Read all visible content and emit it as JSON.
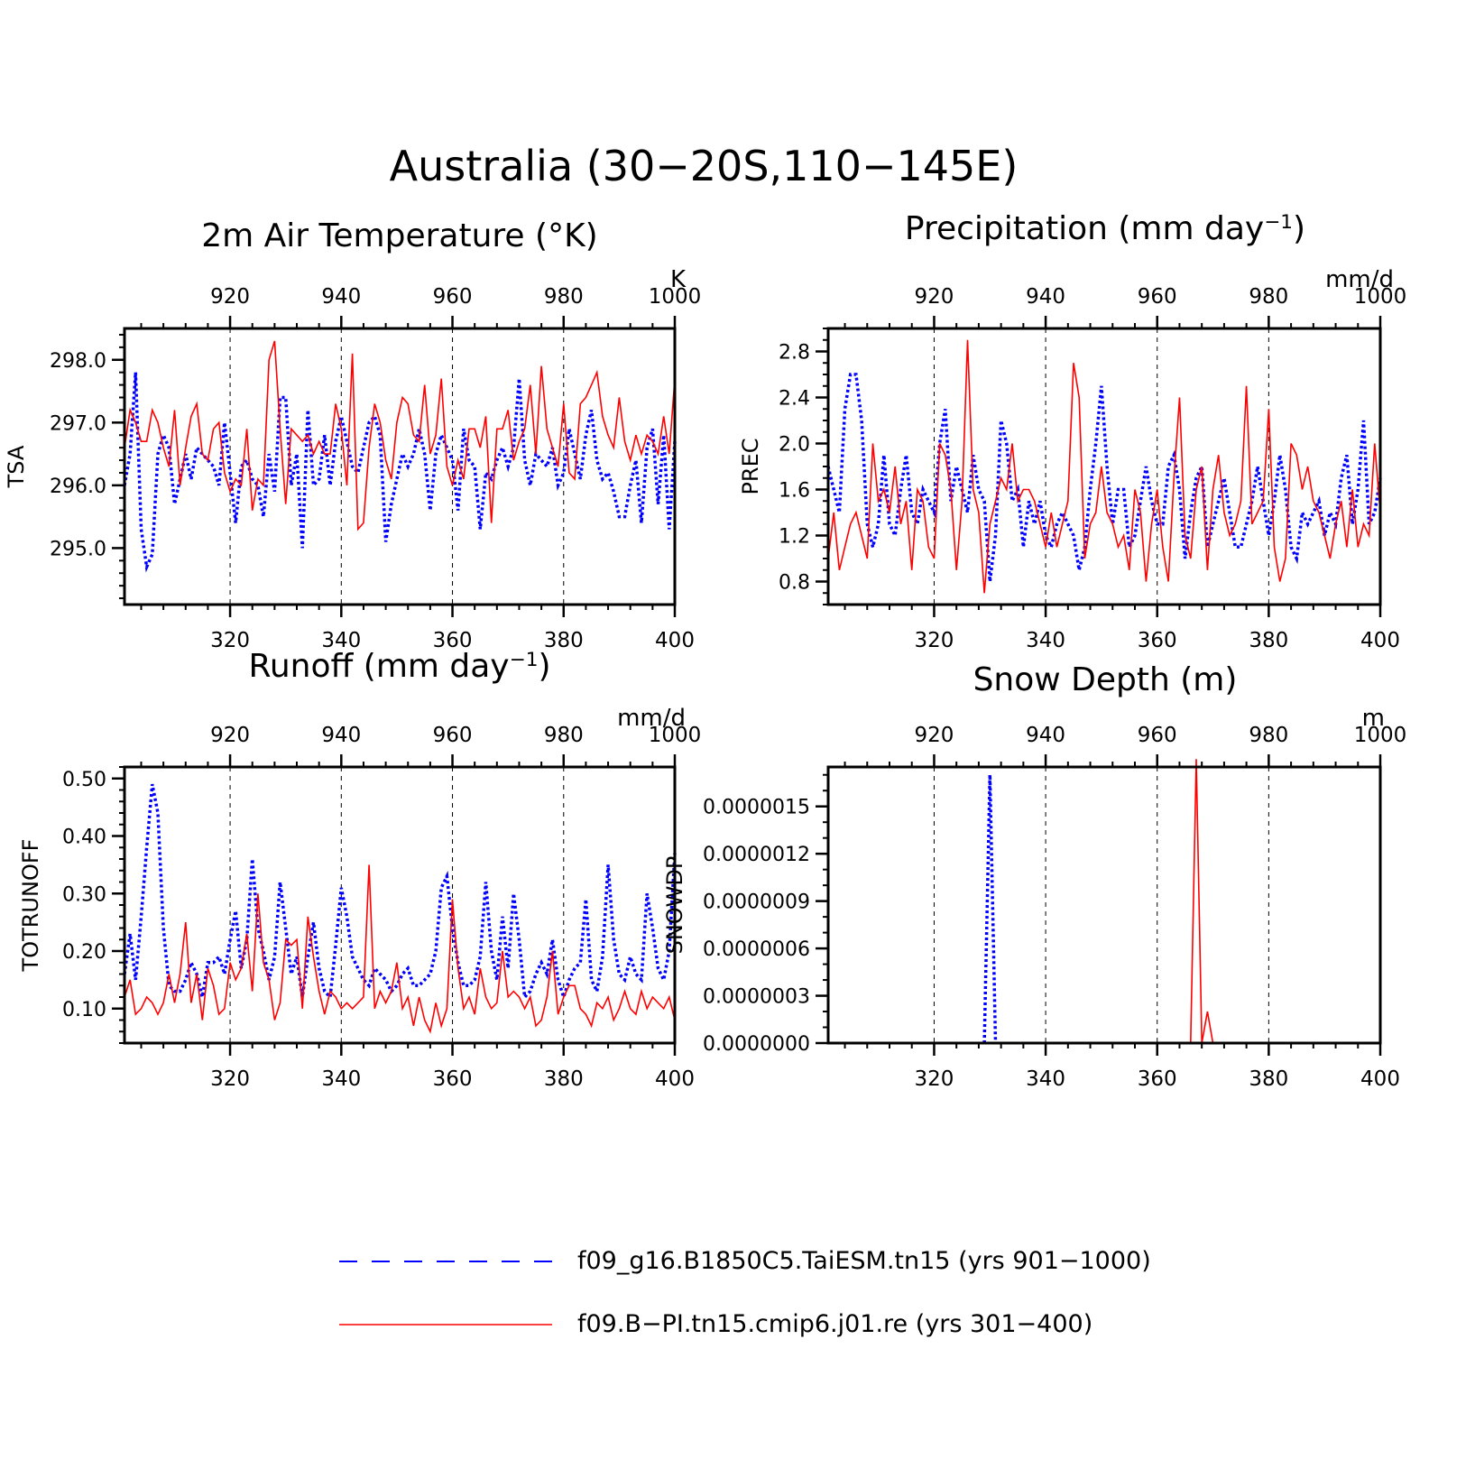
{
  "main_title": "Australia (30−20S,110−145E)",
  "colors": {
    "blue": "#0000ff",
    "red": "#ff0000",
    "axis": "#000000",
    "grid": "#000000"
  },
  "legend": {
    "items": [
      {
        "label": "f09_g16.B1850C5.TaiESM.tn15 (yrs 901−1000)",
        "color": "#0000ff",
        "style": "dashed"
      },
      {
        "label": "f09.B−PI.tn15.cmip6.j01.re (yrs 301−400)",
        "color": "#ff0000",
        "style": "solid"
      }
    ]
  },
  "chart_data": [
    {
      "type": "line",
      "title": "2m Air Temperature (°K)",
      "ylabel": "TSA",
      "units": "K",
      "ylim": [
        294.1,
        298.5
      ],
      "yticks": [
        295.0,
        296.0,
        297.0,
        298.0
      ],
      "ytick_labels": [
        "295.0",
        "296.0",
        "297.0",
        "298.0"
      ],
      "ytick_minor_step": 0.2,
      "grid": "vertical dashed",
      "x_bottom": {
        "range": [
          301,
          400
        ],
        "ticks": [
          320,
          340,
          360,
          380,
          400
        ],
        "color": "#ff0000"
      },
      "x_top": {
        "range": [
          901,
          1000
        ],
        "ticks": [
          920,
          940,
          960,
          980,
          1000
        ],
        "color": "#0000ff"
      },
      "series": [
        {
          "name": "f09_g16.B1850C5.TaiESM.tn15 (yrs 901−1000)",
          "axis": "top",
          "color": "#0000ff",
          "style": "dotted",
          "x_start": 901,
          "values": [
            296.0,
            296.5,
            297.8,
            295.3,
            294.7,
            294.9,
            296.5,
            296.8,
            296.6,
            295.7,
            296.1,
            296.5,
            296.1,
            296.6,
            296.5,
            296.4,
            296.3,
            296.0,
            297.0,
            296.2,
            295.4,
            296.3,
            296.4,
            296.1,
            296.0,
            295.5,
            296.5,
            295.9,
            297.4,
            297.4,
            296.0,
            296.5,
            295.0,
            297.2,
            296.0,
            296.1,
            296.8,
            296.0,
            296.7,
            297.1,
            296.7,
            296.3,
            296.2,
            296.6,
            297.0,
            297.1,
            296.8,
            295.1,
            295.7,
            296.1,
            296.5,
            296.3,
            296.5,
            296.9,
            296.5,
            295.6,
            296.5,
            296.8,
            296.6,
            296.4,
            295.6,
            296.9,
            296.4,
            296.3,
            295.3,
            296.2,
            296.1,
            296.4,
            296.6,
            296.3,
            296.6,
            297.7,
            296.4,
            296.0,
            296.5,
            296.4,
            296.3,
            296.6,
            296.0,
            296.2,
            296.9,
            296.5,
            296.1,
            296.8,
            297.2,
            296.4,
            296.1,
            296.2,
            295.9,
            295.5,
            295.5,
            296.0,
            296.4,
            295.4,
            296.6,
            296.9,
            295.7,
            296.8,
            295.3,
            296.7
          ]
        },
        {
          "name": "f09.B−PI.tn15.cmip6.j01.re (yrs 301−400)",
          "axis": "bottom",
          "color": "#ff0000",
          "style": "solid",
          "x_start": 301,
          "values": [
            296.6,
            297.2,
            297.0,
            296.7,
            296.7,
            297.2,
            297.0,
            296.6,
            296.3,
            297.2,
            296.0,
            296.6,
            297.1,
            297.3,
            296.5,
            296.4,
            296.9,
            297.0,
            296.2,
            295.9,
            296.1,
            296.0,
            296.9,
            295.6,
            296.1,
            296.0,
            298.0,
            298.3,
            296.9,
            295.7,
            296.9,
            296.8,
            296.7,
            296.8,
            296.5,
            296.7,
            296.5,
            296.5,
            297.3,
            296.9,
            296.0,
            298.1,
            295.3,
            295.4,
            296.6,
            297.3,
            297.0,
            296.4,
            296.1,
            297.0,
            297.4,
            297.3,
            296.8,
            296.7,
            297.6,
            296.5,
            296.8,
            297.7,
            296.3,
            296.0,
            296.4,
            296.1,
            296.9,
            296.9,
            296.6,
            297.1,
            295.4,
            296.9,
            296.9,
            297.2,
            296.4,
            296.7,
            296.9,
            297.6,
            296.5,
            297.9,
            296.9,
            296.6,
            296.3,
            297.3,
            296.2,
            296.1,
            297.3,
            297.4,
            297.6,
            297.8,
            297.1,
            296.8,
            296.6,
            297.4,
            296.7,
            296.4,
            296.8,
            296.5,
            296.8,
            296.7,
            296.5,
            297.1,
            296.5,
            297.7
          ]
        }
      ]
    },
    {
      "type": "line",
      "title": "Precipitation (mm day⁻¹)",
      "ylabel": "PREC",
      "units": "mm/d",
      "ylim": [
        0.6,
        3.0
      ],
      "yticks": [
        0.8,
        1.2,
        1.6,
        2.0,
        2.4,
        2.8
      ],
      "ytick_labels": [
        "0.8",
        "1.2",
        "1.6",
        "2.0",
        "2.4",
        "2.8"
      ],
      "ytick_minor_step": 0.1,
      "grid": "vertical dashed",
      "x_bottom": {
        "range": [
          301,
          400
        ],
        "ticks": [
          320,
          340,
          360,
          380,
          400
        ],
        "color": "#ff0000"
      },
      "x_top": {
        "range": [
          901,
          1000
        ],
        "ticks": [
          920,
          940,
          960,
          980,
          1000
        ],
        "color": "#0000ff"
      },
      "series": [
        {
          "name": "f09_g16.B1850C5.TaiESM.tn15 (yrs 901−1000)",
          "axis": "top",
          "color": "#0000ff",
          "style": "dotted",
          "x_start": 901,
          "values": [
            1.8,
            1.6,
            1.4,
            2.3,
            2.6,
            2.6,
            2.2,
            1.3,
            1.1,
            1.3,
            1.9,
            1.3,
            1.2,
            1.6,
            1.9,
            1.4,
            1.3,
            1.6,
            1.5,
            1.4,
            2.0,
            2.3,
            1.5,
            1.8,
            1.6,
            1.4,
            1.9,
            1.6,
            1.5,
            0.8,
            1.2,
            2.2,
            2.0,
            1.5,
            1.6,
            1.1,
            1.5,
            1.3,
            1.5,
            1.2,
            1.1,
            1.3,
            1.4,
            1.3,
            1.2,
            0.9,
            1.1,
            1.6,
            2.0,
            2.5,
            1.8,
            1.3,
            1.6,
            1.6,
            1.1,
            1.2,
            1.5,
            1.8,
            1.5,
            1.3,
            1.3,
            1.8,
            1.9,
            1.6,
            1.0,
            1.4,
            1.7,
            1.8,
            1.1,
            1.3,
            1.5,
            1.7,
            1.4,
            1.1,
            1.1,
            1.3,
            1.5,
            1.8,
            1.5,
            1.2,
            1.5,
            1.9,
            1.6,
            1.1,
            1.0,
            1.4,
            1.3,
            1.4,
            1.5,
            1.2,
            1.4,
            1.3,
            1.7,
            1.9,
            1.3,
            1.6,
            2.2,
            1.3,
            1.4,
            1.7
          ]
        },
        {
          "name": "f09.B−PI.tn15.cmip6.j01.re (yrs 301−400)",
          "axis": "bottom",
          "color": "#ff0000",
          "style": "solid",
          "x_start": 301,
          "values": [
            1.0,
            1.4,
            0.9,
            1.1,
            1.3,
            1.4,
            1.2,
            1.0,
            2.0,
            1.5,
            1.6,
            1.4,
            1.8,
            1.3,
            1.5,
            0.9,
            1.6,
            1.5,
            1.1,
            1.0,
            2.0,
            1.9,
            1.6,
            0.9,
            1.5,
            2.9,
            1.6,
            1.4,
            0.7,
            1.3,
            1.5,
            1.7,
            1.6,
            2.0,
            1.5,
            1.6,
            1.6,
            1.5,
            1.3,
            1.1,
            1.4,
            1.1,
            1.3,
            1.5,
            2.7,
            2.4,
            1.0,
            1.3,
            1.4,
            1.8,
            1.4,
            1.3,
            1.1,
            1.2,
            0.9,
            1.6,
            1.4,
            0.8,
            1.3,
            1.6,
            1.1,
            0.8,
            1.7,
            2.4,
            1.2,
            1.0,
            1.6,
            1.8,
            0.9,
            1.6,
            1.9,
            1.4,
            1.2,
            1.3,
            1.5,
            2.5,
            1.3,
            1.4,
            1.5,
            2.3,
            1.1,
            0.8,
            1.0,
            2.0,
            1.9,
            1.6,
            1.8,
            1.5,
            1.4,
            1.2,
            1.0,
            1.3,
            1.5,
            1.1,
            1.6,
            1.1,
            1.3,
            1.2,
            2.0,
            1.4
          ]
        }
      ]
    },
    {
      "type": "line",
      "title": "Runoff (mm day⁻¹)",
      "ylabel": "TOTRUNOFF",
      "units": "mm/d",
      "ylim": [
        0.04,
        0.52
      ],
      "yticks": [
        0.1,
        0.2,
        0.3,
        0.4,
        0.5
      ],
      "ytick_labels": [
        "0.10",
        "0.20",
        "0.30",
        "0.40",
        "0.50"
      ],
      "ytick_minor_step": 0.02,
      "grid": "vertical dashed",
      "x_bottom": {
        "range": [
          301,
          400
        ],
        "ticks": [
          320,
          340,
          360,
          380,
          400
        ],
        "color": "#ff0000"
      },
      "x_top": {
        "range": [
          901,
          1000
        ],
        "ticks": [
          920,
          940,
          960,
          980,
          1000
        ],
        "color": "#0000ff"
      },
      "series": [
        {
          "name": "f09_g16.B1850C5.TaiESM.tn15 (yrs 901−1000)",
          "axis": "top",
          "color": "#0000ff",
          "style": "dotted",
          "x_start": 901,
          "values": [
            0.16,
            0.23,
            0.15,
            0.26,
            0.38,
            0.49,
            0.44,
            0.24,
            0.14,
            0.13,
            0.13,
            0.15,
            0.18,
            0.16,
            0.12,
            0.18,
            0.18,
            0.19,
            0.16,
            0.22,
            0.27,
            0.17,
            0.22,
            0.36,
            0.24,
            0.2,
            0.15,
            0.19,
            0.32,
            0.24,
            0.16,
            0.19,
            0.12,
            0.19,
            0.25,
            0.17,
            0.13,
            0.12,
            0.21,
            0.31,
            0.26,
            0.19,
            0.17,
            0.15,
            0.14,
            0.17,
            0.16,
            0.15,
            0.13,
            0.14,
            0.16,
            0.17,
            0.14,
            0.14,
            0.15,
            0.16,
            0.2,
            0.31,
            0.33,
            0.24,
            0.18,
            0.14,
            0.14,
            0.15,
            0.19,
            0.32,
            0.2,
            0.15,
            0.26,
            0.17,
            0.3,
            0.22,
            0.12,
            0.13,
            0.16,
            0.18,
            0.16,
            0.22,
            0.15,
            0.12,
            0.15,
            0.17,
            0.18,
            0.29,
            0.15,
            0.13,
            0.19,
            0.35,
            0.22,
            0.16,
            0.15,
            0.19,
            0.16,
            0.15,
            0.3,
            0.24,
            0.17,
            0.15,
            0.2,
            0.37
          ]
        },
        {
          "name": "f09.B−PI.tn15.cmip6.j01.re (yrs 301−400)",
          "axis": "bottom",
          "color": "#ff0000",
          "style": "solid",
          "x_start": 301,
          "values": [
            0.12,
            0.15,
            0.09,
            0.1,
            0.12,
            0.11,
            0.09,
            0.11,
            0.16,
            0.11,
            0.16,
            0.25,
            0.11,
            0.16,
            0.08,
            0.17,
            0.14,
            0.09,
            0.1,
            0.18,
            0.15,
            0.17,
            0.23,
            0.13,
            0.3,
            0.18,
            0.15,
            0.08,
            0.11,
            0.22,
            0.21,
            0.22,
            0.1,
            0.26,
            0.19,
            0.13,
            0.09,
            0.13,
            0.12,
            0.1,
            0.11,
            0.1,
            0.11,
            0.12,
            0.35,
            0.1,
            0.13,
            0.11,
            0.13,
            0.18,
            0.1,
            0.12,
            0.07,
            0.12,
            0.08,
            0.06,
            0.11,
            0.07,
            0.1,
            0.29,
            0.17,
            0.1,
            0.12,
            0.09,
            0.17,
            0.12,
            0.1,
            0.11,
            0.2,
            0.12,
            0.13,
            0.12,
            0.1,
            0.12,
            0.07,
            0.08,
            0.12,
            0.2,
            0.09,
            0.12,
            0.14,
            0.14,
            0.1,
            0.09,
            0.07,
            0.11,
            0.1,
            0.12,
            0.08,
            0.1,
            0.13,
            0.1,
            0.09,
            0.13,
            0.1,
            0.12,
            0.11,
            0.1,
            0.12,
            0.08
          ]
        }
      ]
    },
    {
      "type": "line",
      "title": "Snow Depth (m)",
      "ylabel": "SNOWDP",
      "units": "m",
      "ylim": [
        0,
        1.75e-06
      ],
      "yticks": [
        0,
        3e-07,
        6e-07,
        9e-07,
        1.2e-06,
        1.5e-06
      ],
      "ytick_labels": [
        "0.0000000",
        "0.0000003",
        "0.0000006",
        "0.0000009",
        "0.0000012",
        "0.0000015"
      ],
      "ytick_minor_step": 1e-07,
      "grid": "vertical dashed",
      "x_bottom": {
        "range": [
          301,
          400
        ],
        "ticks": [
          320,
          340,
          360,
          380,
          400
        ],
        "color": "#ff0000"
      },
      "x_top": {
        "range": [
          901,
          1000
        ],
        "ticks": [
          920,
          940,
          960,
          980,
          1000
        ],
        "color": "#0000ff"
      },
      "series": [
        {
          "name": "f09_g16.B1850C5.TaiESM.tn15 (yrs 901−1000)",
          "axis": "top",
          "color": "#0000ff",
          "style": "dotted",
          "x": [
            929,
            930,
            931
          ],
          "values": [
            0,
            1.7e-06,
            0
          ]
        },
        {
          "name": "f09.B−PI.tn15.cmip6.j01.re (yrs 301−400)",
          "axis": "bottom",
          "color": "#ff0000",
          "style": "solid",
          "x": [
            366,
            367,
            368,
            369,
            370
          ],
          "values": [
            0,
            1.8e-06,
            0,
            2e-07,
            0
          ]
        }
      ]
    }
  ]
}
